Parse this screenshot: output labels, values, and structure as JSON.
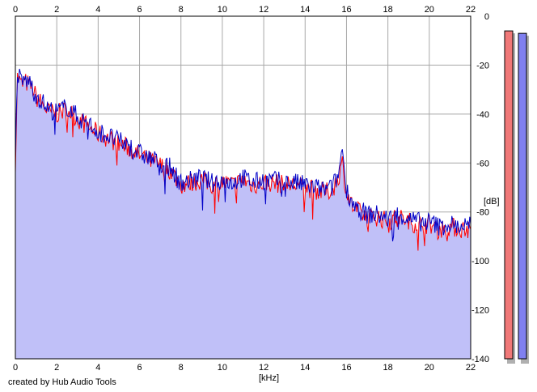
{
  "footer": {
    "credit": "created by Hub Audio Tools"
  },
  "chart_data": {
    "type": "area",
    "xlabel": "[kHz]",
    "ylabel": "[dB]",
    "xlim": [
      0,
      22
    ],
    "ylim": [
      -140,
      0
    ],
    "x_ticks": [
      "0",
      "2",
      "4",
      "6",
      "8",
      "10",
      "12",
      "14",
      "16",
      "18",
      "20",
      "22"
    ],
    "y_ticks": [
      "0",
      "-20",
      "-40",
      "-60",
      "-80",
      "-100",
      "-120",
      "-140"
    ],
    "grid": true,
    "x_axis_position": "top and bottom",
    "y_axis_position": "right",
    "fill_color": "#c0c0f8",
    "series": [
      {
        "color": "#ff0000",
        "x": [
          0,
          0.1,
          0.3,
          0.5,
          0.8,
          1.0,
          1.3,
          1.6,
          2.0,
          2.5,
          3.0,
          3.5,
          4.0,
          4.5,
          5.0,
          5.5,
          6.0,
          6.5,
          7.0,
          7.5,
          8.0,
          8.5,
          9.0,
          9.5,
          10.0,
          10.5,
          11.0,
          11.5,
          12.0,
          12.5,
          13.0,
          13.5,
          14.0,
          14.5,
          15.0,
          15.3,
          15.6,
          15.8,
          16.0,
          16.3,
          16.6,
          17.0,
          17.5,
          18.0,
          18.5,
          19.0,
          19.5,
          20.0,
          20.5,
          21.0,
          21.5,
          22.0
        ],
        "values": [
          -60,
          -25,
          -28,
          -27,
          -29,
          -33,
          -36,
          -39,
          -40,
          -38,
          -42,
          -45,
          -48,
          -50,
          -52,
          -54,
          -57,
          -59,
          -61,
          -63,
          -69,
          -68,
          -67,
          -69,
          -68,
          -69,
          -67,
          -69,
          -68,
          -68,
          -69,
          -69,
          -70,
          -71,
          -72,
          -71,
          -66,
          -60,
          -72,
          -78,
          -80,
          -82,
          -82,
          -84,
          -82,
          -84,
          -85,
          -85,
          -87,
          -86,
          -87,
          -87
        ]
      },
      {
        "color": "#0000c8",
        "x": [
          0,
          0.1,
          0.3,
          0.5,
          0.8,
          1.0,
          1.3,
          1.6,
          2.0,
          2.5,
          3.0,
          3.5,
          4.0,
          4.5,
          5.0,
          5.5,
          6.0,
          6.5,
          7.0,
          7.5,
          8.0,
          8.5,
          9.0,
          9.5,
          10.0,
          10.5,
          11.0,
          11.5,
          12.0,
          12.5,
          13.0,
          13.5,
          14.0,
          14.5,
          15.0,
          15.3,
          15.6,
          15.8,
          16.0,
          16.3,
          16.6,
          17.0,
          17.5,
          18.0,
          18.5,
          19.0,
          19.5,
          20.0,
          20.5,
          21.0,
          21.5,
          22.0
        ],
        "values": [
          -58,
          -23,
          -27,
          -26,
          -28,
          -32,
          -35,
          -38,
          -39,
          -37,
          -41,
          -44,
          -47,
          -49,
          -51,
          -53,
          -56,
          -58,
          -60,
          -62,
          -68,
          -67,
          -66,
          -68,
          -67,
          -68,
          -66,
          -68,
          -67,
          -67,
          -68,
          -68,
          -69,
          -70,
          -71,
          -70,
          -65,
          -54,
          -71,
          -76,
          -79,
          -81,
          -81,
          -83,
          -81,
          -83,
          -84,
          -84,
          -86,
          -85,
          -86,
          -85
        ]
      }
    ],
    "level_meters": [
      {
        "color": "#f07878",
        "value": -6
      },
      {
        "color": "#8080f0",
        "value": -7
      }
    ]
  }
}
